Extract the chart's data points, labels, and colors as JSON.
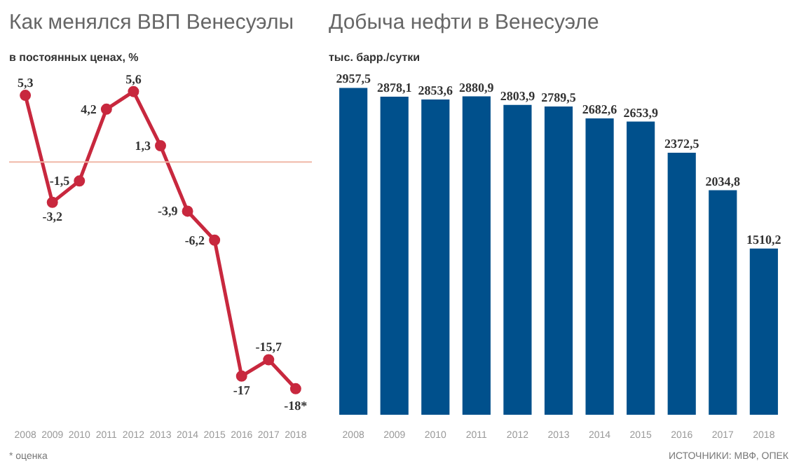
{
  "chart_data": [
    {
      "type": "line",
      "title": "Как менялся ВВП Венесуэлы",
      "subtitle": "в постоянных ценах, %",
      "categories": [
        "2008",
        "2009",
        "2010",
        "2011",
        "2012",
        "2013",
        "2014",
        "2015",
        "2016",
        "2017",
        "2018"
      ],
      "values": [
        5.3,
        -3.2,
        -1.5,
        4.2,
        5.6,
        1.3,
        -3.9,
        -6.2,
        -17,
        -15.7,
        -18
      ],
      "value_labels": [
        "5,3",
        "-3,2",
        "-1,5",
        "4,2",
        "5,6",
        "1,3",
        "-3,9",
        "-6,2",
        "-17",
        "-15,7",
        "-18*"
      ],
      "color": "#c8283e",
      "marker": "circle",
      "ref_lines": [
        {
          "axis": "y",
          "value": 0,
          "color": "#f0b8a8"
        }
      ],
      "annotations": [
        "* оценка"
      ],
      "grid": false
    },
    {
      "type": "bar",
      "title": "Добыча нефти в Венесуэле",
      "subtitle": "тыс. барр./сутки",
      "categories": [
        "2008",
        "2009",
        "2010",
        "2011",
        "2012",
        "2013",
        "2014",
        "2015",
        "2016",
        "2017",
        "2018"
      ],
      "values": [
        2957.5,
        2878.1,
        2853.6,
        2880.9,
        2803.9,
        2789.5,
        2682.6,
        2653.9,
        2372.5,
        2034.8,
        1510.2
      ],
      "value_labels": [
        "2957,5",
        "2878,1",
        "2853,6",
        "2880,9",
        "2803,9",
        "2789,5",
        "2682,6",
        "2653,9",
        "2372,5",
        "2034,8",
        "1510,2"
      ],
      "color": "#00508c",
      "annotations": [
        "ИСТОЧНИКИ: МВФ, ОПЕК"
      ],
      "grid": false
    }
  ]
}
